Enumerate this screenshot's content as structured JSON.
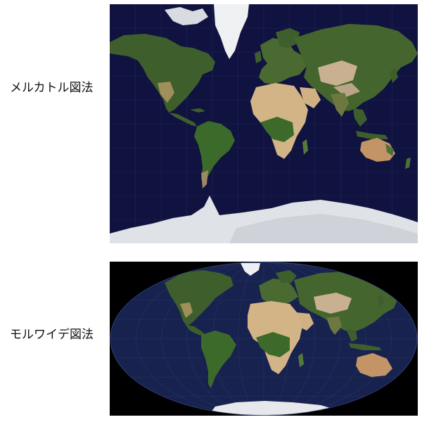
{
  "figure": {
    "maps": [
      {
        "id": "mercator",
        "label": "メルカトル図法",
        "projection": "mercator",
        "ocean_color": "#10123f",
        "land_color": "#3b5f2a",
        "desert_color": "#c9a879",
        "ice_color": "#e6e7ea"
      },
      {
        "id": "mollweide",
        "label": "モルワイデ図法",
        "projection": "mollweide",
        "ocean_color": "#17224f",
        "background_color": "#000000",
        "land_color": "#3b5f2a",
        "desert_color": "#c9a879",
        "ice_color": "#e6e7ea"
      }
    ]
  }
}
